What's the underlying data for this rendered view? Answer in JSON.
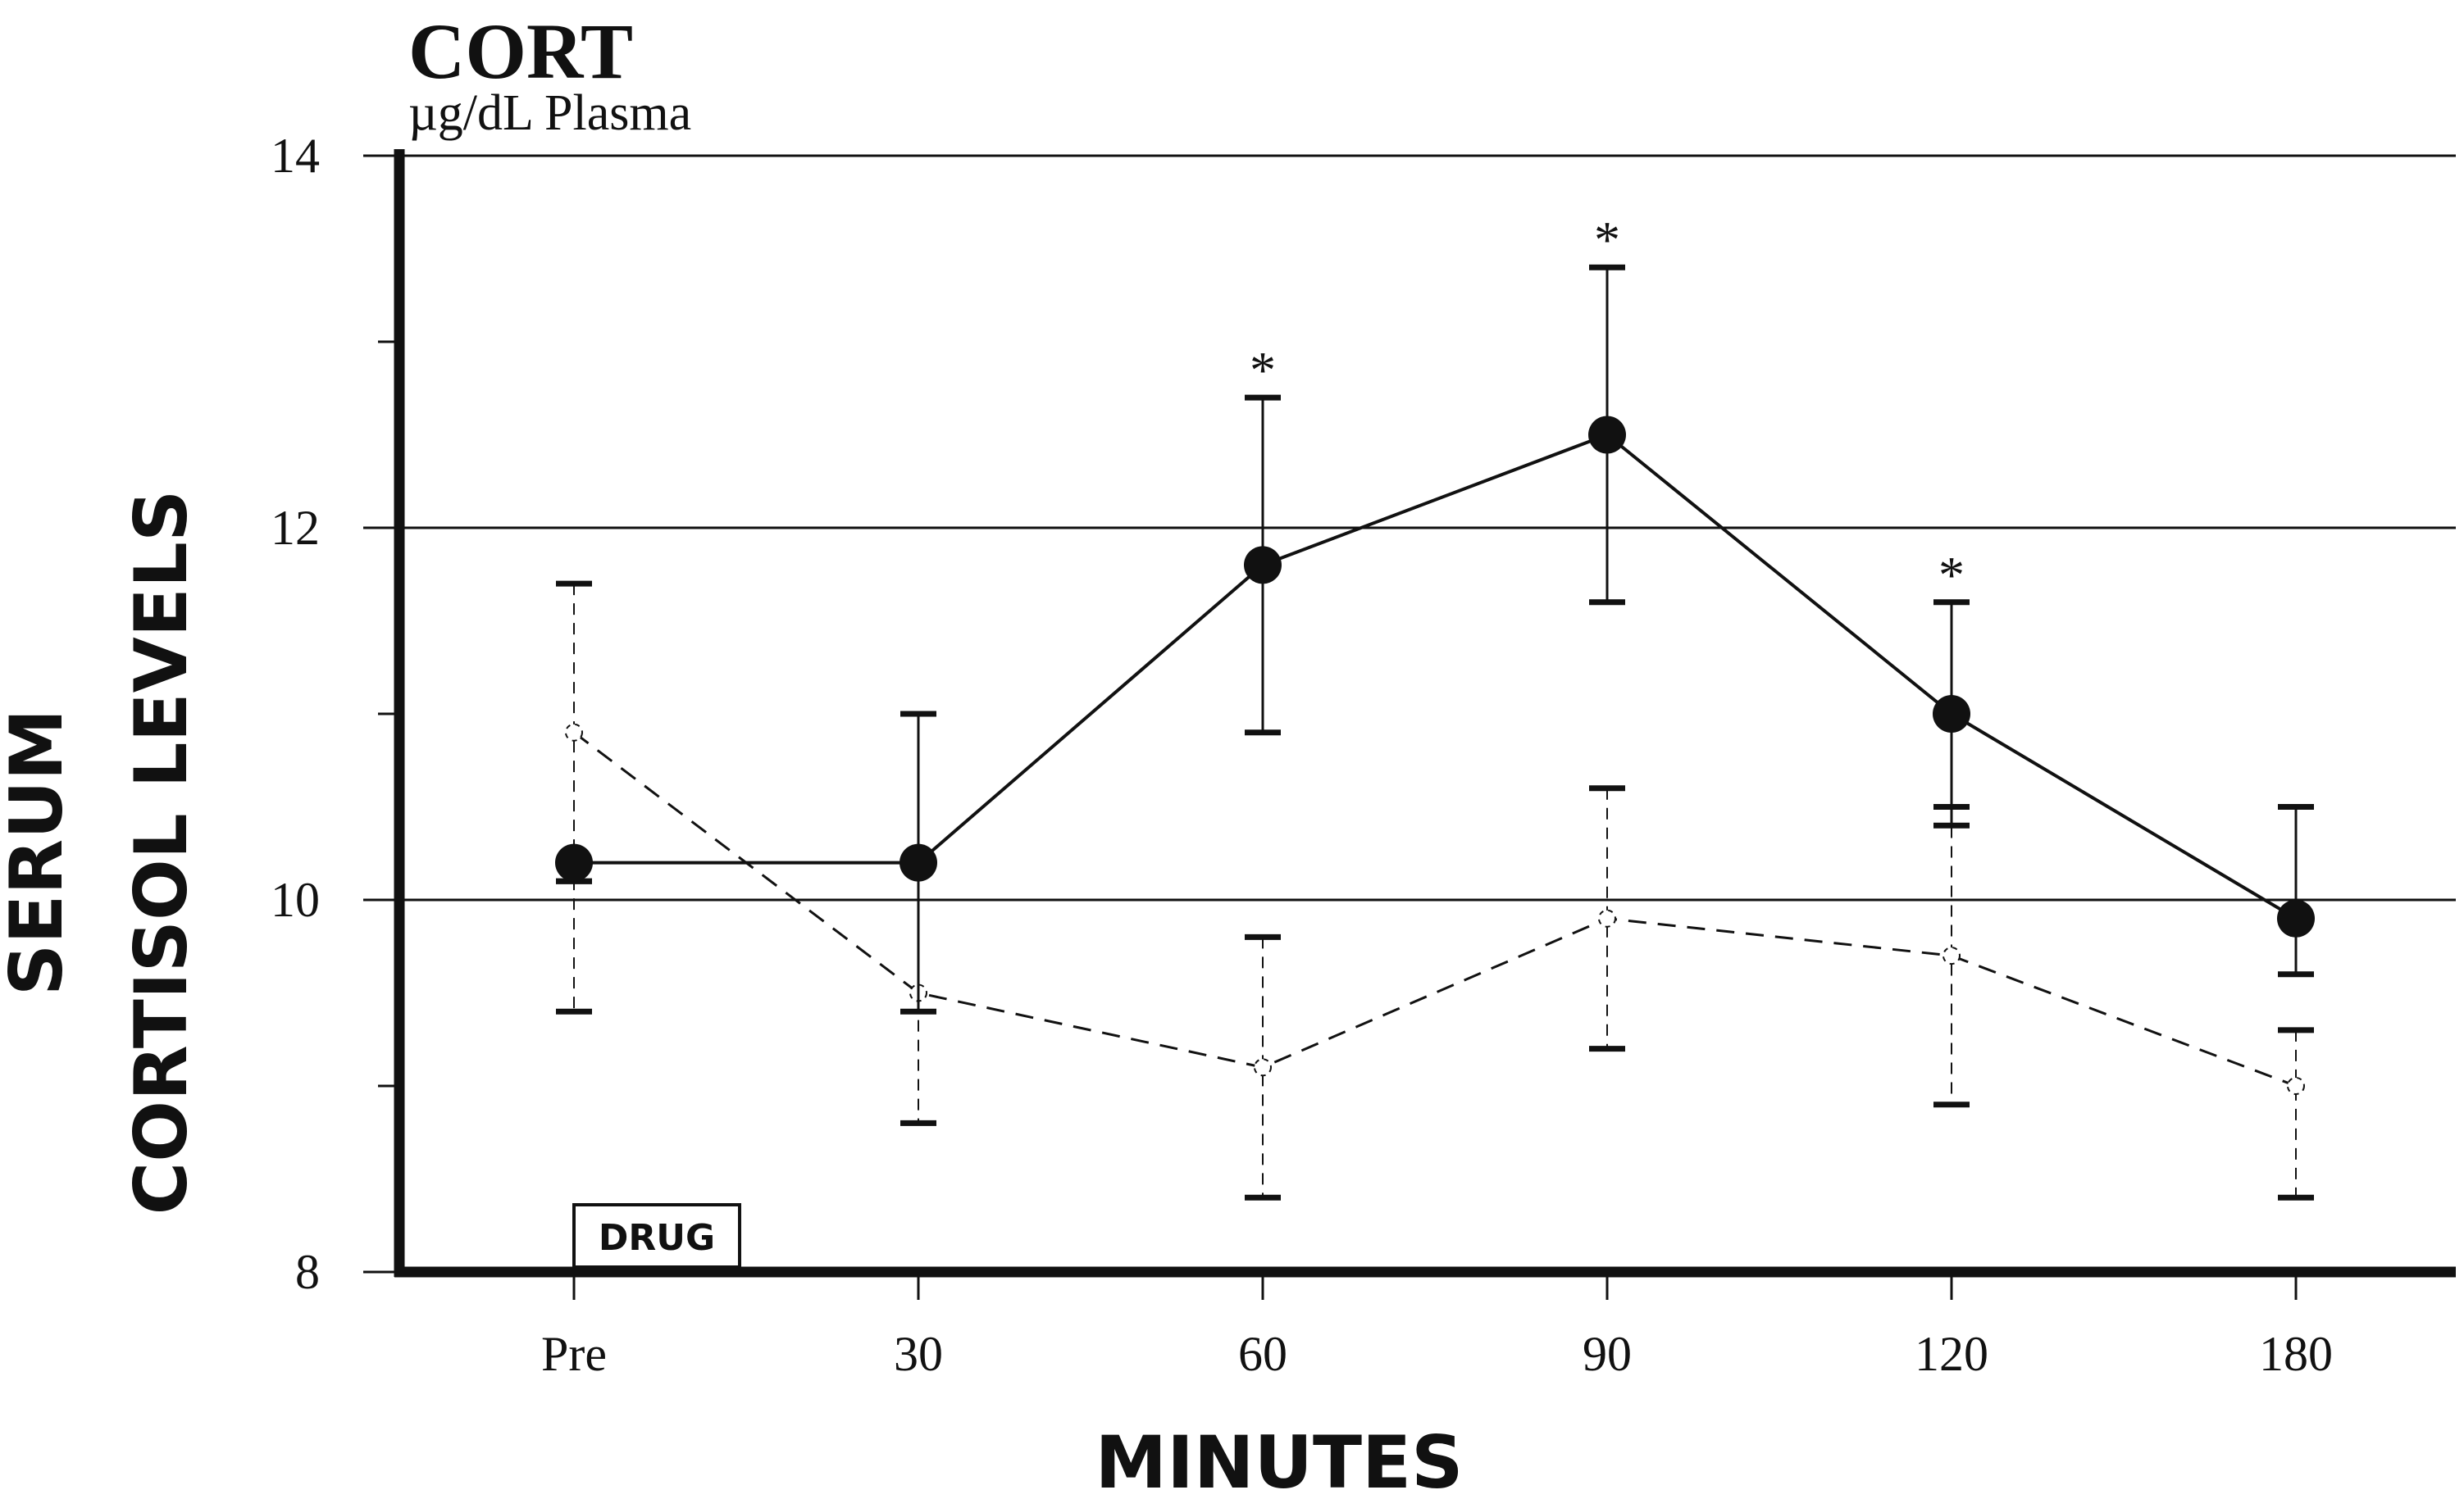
{
  "chart_data": {
    "type": "line",
    "title": "CORT",
    "unit_label": "µg/dL Plasma",
    "ylabel_line1": "SERUM",
    "ylabel_line2": "CORTISOL LEVELS",
    "xlabel": "MINUTES",
    "annotation": "DRUG",
    "categories": [
      "Pre",
      "30",
      "60",
      "90",
      "120",
      "180"
    ],
    "ylim": [
      8,
      14
    ],
    "yticks": [
      8,
      10,
      12,
      14
    ],
    "grid_y": [
      10,
      12,
      14
    ],
    "significance_marker": "*",
    "series": [
      {
        "style": "solid-filled-circles",
        "values": [
          10.2,
          10.2,
          11.8,
          12.5,
          11.0,
          9.9
        ],
        "err_low": [
          10.1,
          9.4,
          10.9,
          11.6,
          10.4,
          9.6
        ],
        "err_high": [
          10.1,
          11.0,
          12.7,
          13.4,
          11.6,
          10.5
        ],
        "significant": [
          false,
          false,
          true,
          true,
          true,
          false
        ]
      },
      {
        "style": "dashed-open",
        "values": [
          10.9,
          9.5,
          9.1,
          9.9,
          9.7,
          9.0
        ],
        "err_low": [
          9.4,
          8.8,
          8.4,
          9.2,
          8.9,
          8.4
        ],
        "err_high": [
          11.7,
          10.2,
          9.8,
          10.6,
          10.5,
          9.3
        ]
      }
    ],
    "colors": {
      "ink": "#111111"
    }
  }
}
